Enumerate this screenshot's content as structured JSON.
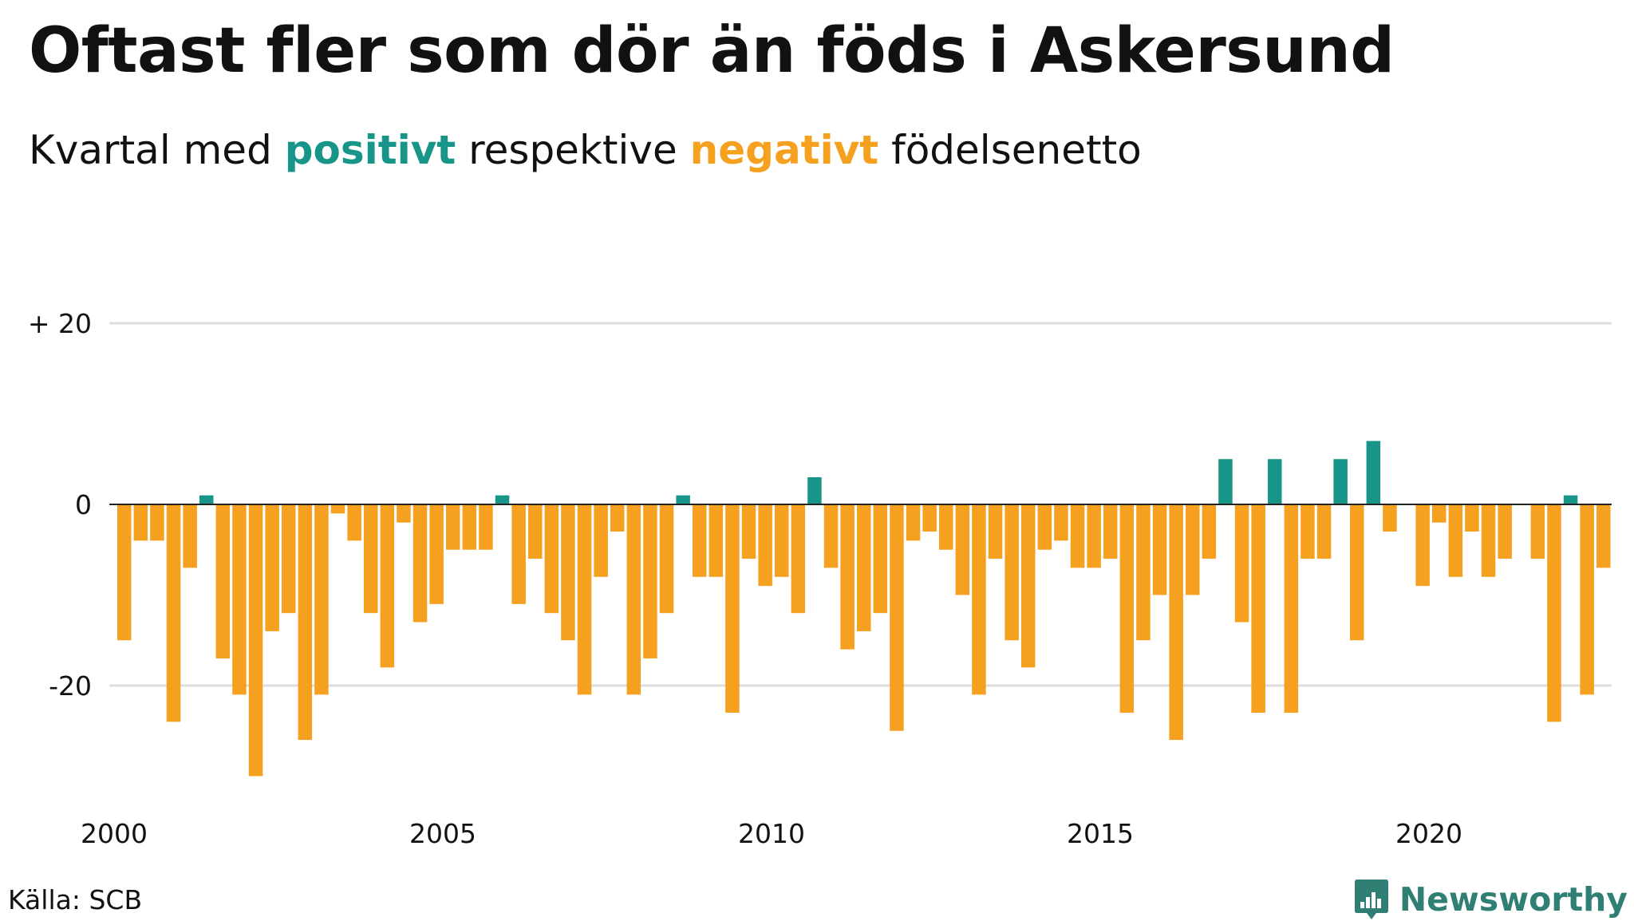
{
  "header": {
    "title": "Oftast fler som dör än föds i Askersund",
    "subtitle_pre": "Kvartal med ",
    "subtitle_pos": "positivt",
    "subtitle_mid": " respektive ",
    "subtitle_neg": "negativt",
    "subtitle_post": " födelsenetto"
  },
  "footer": {
    "source": "Källa: SCB",
    "brand": "Newsworthy"
  },
  "colors": {
    "positive": "#169588",
    "negative": "#f5a01f",
    "grid": "#dddddd",
    "zero_line": "#222222",
    "brand": "#2f7f74"
  },
  "icons": {
    "brand_logo": "bar-chart-speech-bubble-icon"
  },
  "chart_data": {
    "type": "bar",
    "title": "Oftast fler som dör än föds i Askersund",
    "subtitle": "Kvartal med positivt respektive negativt födelsenetto",
    "xlabel": "",
    "ylabel": "",
    "ylim": [
      -30,
      20
    ],
    "xlim": [
      2000,
      2022.75
    ],
    "grid": true,
    "y_ticks": [
      {
        "value": 20,
        "label": "+ 20"
      },
      {
        "value": 0,
        "label": "0"
      },
      {
        "value": -20,
        "label": "-20"
      }
    ],
    "x_ticks": [
      {
        "value": 2000,
        "label": "2000"
      },
      {
        "value": 2005,
        "label": "2005"
      },
      {
        "value": 2010,
        "label": "2010"
      },
      {
        "value": 2015,
        "label": "2015"
      },
      {
        "value": 2020,
        "label": "2020"
      }
    ],
    "categories": [
      "2000 K1",
      "2000 K2",
      "2000 K3",
      "2000 K4",
      "2001 K1",
      "2001 K2",
      "2001 K3",
      "2001 K4",
      "2002 K1",
      "2002 K2",
      "2002 K3",
      "2002 K4",
      "2003 K1",
      "2003 K2",
      "2003 K3",
      "2003 K4",
      "2004 K1",
      "2004 K2",
      "2004 K3",
      "2004 K4",
      "2005 K1",
      "2005 K2",
      "2005 K3",
      "2005 K4",
      "2006 K1",
      "2006 K2",
      "2006 K3",
      "2006 K4",
      "2007 K1",
      "2007 K2",
      "2007 K3",
      "2007 K4",
      "2008 K1",
      "2008 K2",
      "2008 K3",
      "2008 K4",
      "2009 K1",
      "2009 K2",
      "2009 K3",
      "2009 K4",
      "2010 K1",
      "2010 K2",
      "2010 K3",
      "2010 K4",
      "2011 K1",
      "2011 K2",
      "2011 K3",
      "2011 K4",
      "2012 K1",
      "2012 K2",
      "2012 K3",
      "2012 K4",
      "2013 K1",
      "2013 K2",
      "2013 K3",
      "2013 K4",
      "2014 K1",
      "2014 K2",
      "2014 K3",
      "2014 K4",
      "2015 K1",
      "2015 K2",
      "2015 K3",
      "2015 K4",
      "2016 K1",
      "2016 K2",
      "2016 K3",
      "2016 K4",
      "2017 K1",
      "2017 K2",
      "2017 K3",
      "2017 K4",
      "2018 K1",
      "2018 K2",
      "2018 K3",
      "2018 K4",
      "2019 K1",
      "2019 K2",
      "2019 K3",
      "2019 K4",
      "2020 K1",
      "2020 K2",
      "2020 K3",
      "2020 K4",
      "2021 K1",
      "2021 K2",
      "2021 K3",
      "2021 K4",
      "2022 K1",
      "2022 K2",
      "2022 K3",
      "2022 K4"
    ],
    "values": [
      -15,
      -4,
      -4,
      -24,
      -7,
      1,
      -17,
      -21,
      -30,
      -14,
      -12,
      -26,
      -21,
      -1,
      -4,
      -12,
      -18,
      -2,
      -13,
      -11,
      -5,
      -5,
      -5,
      1,
      -11,
      -6,
      -12,
      -15,
      -21,
      -8,
      -3,
      -21,
      -17,
      -12,
      1,
      -8,
      -8,
      -23,
      -6,
      -9,
      -8,
      -12,
      3,
      -7,
      -16,
      -14,
      -12,
      -25,
      -4,
      -3,
      -5,
      -10,
      -21,
      -6,
      -15,
      -18,
      -5,
      -4,
      -7,
      -7,
      -6,
      -23,
      -15,
      -10,
      -26,
      -10,
      -6,
      5,
      -13,
      -23,
      5,
      -23,
      -6,
      -6,
      5,
      -15,
      7,
      -3,
      0,
      -9,
      -2,
      -8,
      -3,
      -8,
      -6,
      0,
      -6,
      -24,
      1,
      -21,
      -7,
      0
    ]
  }
}
